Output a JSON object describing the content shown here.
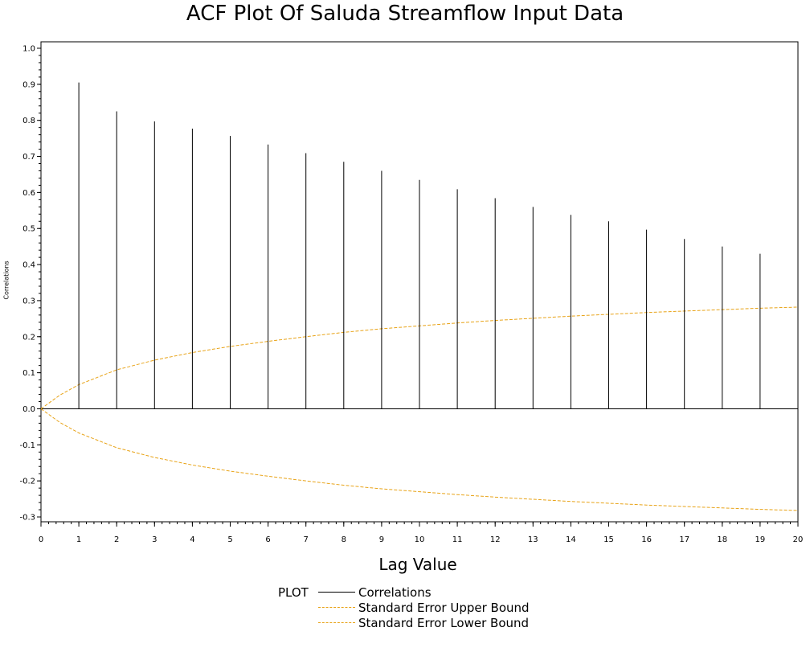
{
  "chart_data": {
    "type": "bar",
    "title": "ACF Plot Of Saluda Streamflow Input Data",
    "xlabel": "Lag Value",
    "ylabel": "Correlations",
    "xlim": [
      0,
      20
    ],
    "ylim": [
      -0.3,
      1.0
    ],
    "x_ticks": [
      "0",
      "1",
      "2",
      "3",
      "4",
      "5",
      "6",
      "7",
      "8",
      "9",
      "10",
      "11",
      "12",
      "13",
      "14",
      "15",
      "16",
      "17",
      "18",
      "19",
      "20"
    ],
    "y_ticks": [
      "1.0",
      "0.9",
      "0.8",
      "0.7",
      "0.6",
      "0.5",
      "0.4",
      "0.3",
      "0.2",
      "0.1",
      "0.0",
      "-0.1",
      "-0.2",
      "-0.3"
    ],
    "series": [
      {
        "name": "Correlations",
        "type": "needle",
        "color": "#000000",
        "x": [
          1,
          2,
          3,
          4,
          5,
          6,
          7,
          8,
          9,
          10,
          11,
          12,
          13,
          14,
          15,
          16,
          17,
          18,
          19,
          20
        ],
        "values": [
          0.905,
          0.825,
          0.797,
          0.777,
          0.757,
          0.733,
          0.709,
          0.685,
          0.66,
          0.635,
          0.609,
          0.584,
          0.56,
          0.538,
          0.52,
          0.497,
          0.471,
          0.45,
          0.43,
          0.403
        ]
      },
      {
        "name": "Standard Error Upper Bound",
        "type": "line",
        "color": "#E8A317",
        "x": [
          0,
          0.5,
          1,
          2,
          3,
          4,
          5,
          6,
          7,
          8,
          9,
          10,
          11,
          12,
          13,
          14,
          15,
          16,
          17,
          18,
          19,
          20
        ],
        "values": [
          0.0,
          0.038,
          0.067,
          0.108,
          0.135,
          0.156,
          0.173,
          0.187,
          0.2,
          0.212,
          0.222,
          0.23,
          0.238,
          0.245,
          0.251,
          0.257,
          0.262,
          0.267,
          0.271,
          0.275,
          0.279,
          0.282
        ]
      },
      {
        "name": "Standard Error Lower Bound",
        "type": "line",
        "color": "#E8A317",
        "x": [
          0,
          0.5,
          1,
          2,
          3,
          4,
          5,
          6,
          7,
          8,
          9,
          10,
          11,
          12,
          13,
          14,
          15,
          16,
          17,
          18,
          19,
          20
        ],
        "values": [
          0.0,
          -0.038,
          -0.067,
          -0.108,
          -0.135,
          -0.156,
          -0.173,
          -0.187,
          -0.2,
          -0.212,
          -0.222,
          -0.23,
          -0.238,
          -0.245,
          -0.251,
          -0.257,
          -0.262,
          -0.267,
          -0.271,
          -0.275,
          -0.279,
          -0.282
        ]
      }
    ],
    "legend": {
      "title": "PLOT",
      "placement": "bottom",
      "entries": [
        "Correlations",
        "Standard Error Upper Bound",
        "Standard Error Lower Bound"
      ]
    },
    "grid": false
  }
}
